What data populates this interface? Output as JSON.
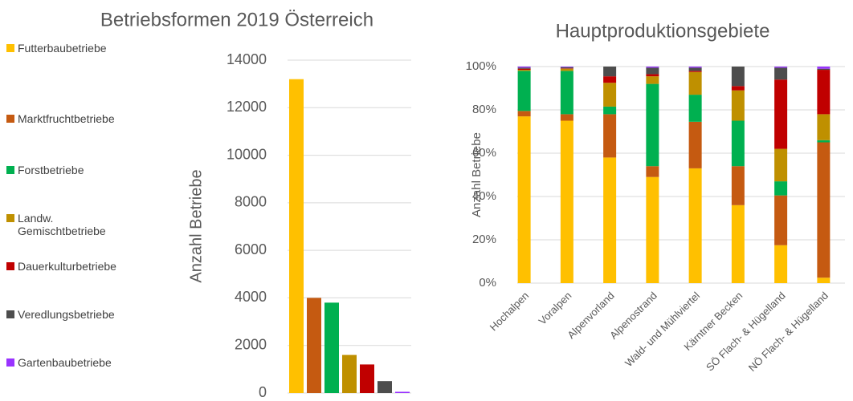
{
  "chart_data": [
    {
      "type": "bar",
      "title": "Betriebsformen 2019  Österreich",
      "y_label": "Anzahl Betriebe",
      "categories": [
        "Futterbaubetriebe",
        "Marktfruchtbetriebe",
        "Forstbetriebe",
        "Landw. Gemischtbetriebe",
        "Dauerkulturbetriebe",
        "Veredlungsbetriebe",
        "Gartenbaubetriebe"
      ],
      "values": [
        13200,
        4000,
        3800,
        1600,
        1200,
        500,
        50
      ],
      "colors": [
        "#FFC000",
        "#C55A11",
        "#00B050",
        "#BF9000",
        "#C00000",
        "#4D4D4D",
        "#9933FF"
      ],
      "ylim": [
        0,
        14000
      ],
      "yticks": [
        0,
        2000,
        4000,
        6000,
        8000,
        10000,
        12000,
        14000
      ],
      "grid": true,
      "legend": "left"
    },
    {
      "type": "stacked_bar",
      "title": "Hauptproduktionsgebiete",
      "y_label": "Anzahl Betriebe",
      "categories": [
        "Hochalpen",
        "Voralpen",
        "Alpenvorland",
        "Alpenostrand",
        "Wald- und Mühlviertel",
        "Kärntner Becken",
        "SÖ Flach- & Hügelland",
        "NÖ Flach- & Hügelland"
      ],
      "series": [
        {
          "color": "#FFC000",
          "values": [
            77,
            75,
            58,
            49,
            53,
            36,
            17.5,
            2.5
          ]
        },
        {
          "color": "#C55A11",
          "values": [
            2.5,
            3,
            20,
            5,
            21.5,
            18,
            23,
            62.5
          ]
        },
        {
          "color": "#00B050",
          "values": [
            18.5,
            20,
            3.5,
            38,
            12.5,
            21,
            6.5,
            1
          ]
        },
        {
          "color": "#BF9000",
          "values": [
            0.5,
            1,
            11,
            3.5,
            10.5,
            14,
            15,
            12
          ]
        },
        {
          "color": "#C00000",
          "values": [
            0.5,
            0.2,
            3,
            1,
            0.5,
            2,
            32,
            20.5
          ]
        },
        {
          "color": "#4D4D4D",
          "values": [
            0.5,
            0.5,
            4.5,
            3,
            1.5,
            9,
            5.5,
            0.5
          ]
        },
        {
          "color": "#9933FF",
          "values": [
            0.5,
            0.3,
            0,
            0.5,
            0.5,
            0,
            0.5,
            1
          ]
        }
      ],
      "ylim": [
        0,
        100
      ],
      "yticks": [
        {
          "value": 0,
          "label": "0%"
        },
        {
          "value": 20,
          "label": "20%"
        },
        {
          "value": 40,
          "label": "40%"
        },
        {
          "value": 60,
          "label": "60%"
        },
        {
          "value": 80,
          "label": "80%"
        },
        {
          "value": 100,
          "label": "100%"
        }
      ],
      "grid": true
    }
  ]
}
